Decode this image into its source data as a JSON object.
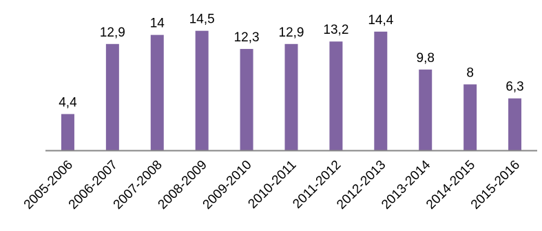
{
  "chart_data": {
    "type": "bar",
    "categories": [
      "2005-2006",
      "2006-2007",
      "2007-2008",
      "2008-2009",
      "2009-2010",
      "2010-2011",
      "2011-2012",
      "2012-2013",
      "2013-2014",
      "2014-2015",
      "2015-2016"
    ],
    "values": [
      4.4,
      12.9,
      14,
      14.5,
      12.3,
      12.9,
      13.2,
      14.4,
      9.8,
      8,
      6.3
    ],
    "data_labels": [
      "4,4",
      "12,9",
      "14",
      "14,5",
      "12,3",
      "12,9",
      "13,2",
      "14,4",
      "9,8",
      "8",
      "6,3"
    ],
    "title": "",
    "xlabel": "",
    "ylabel": "",
    "ylim": [
      0,
      17.4
    ],
    "grid": false,
    "legend": "none",
    "colors": {
      "bar": "#8064A2",
      "axis": "#868686",
      "text": "#000000"
    }
  }
}
